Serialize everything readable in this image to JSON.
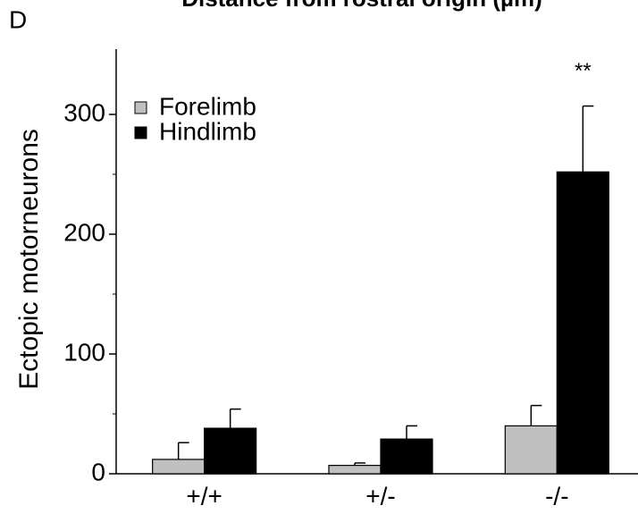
{
  "panel_label": "D",
  "cropped_heading": "Distance from rostral origin (µm)",
  "chart_data": {
    "type": "bar",
    "ylabel": "Ectopic motorneurons",
    "categories": [
      "+/+",
      "+/-",
      "-/-"
    ],
    "series": [
      {
        "name": "Forelimb",
        "color": "#c0c0c0",
        "values": [
          12,
          7,
          40
        ],
        "errors": [
          14,
          2,
          17
        ]
      },
      {
        "name": "Hindlimb",
        "color": "#000000",
        "values": [
          38,
          29,
          252
        ],
        "errors": [
          16,
          11,
          55
        ]
      }
    ],
    "ylim": [
      0,
      350
    ],
    "yticks": [
      0,
      100,
      200,
      300
    ],
    "yminor_ticks": [
      50,
      150,
      250
    ],
    "legend": "upper left",
    "annotations": [
      {
        "text": "**",
        "category": 2,
        "series": 1
      }
    ]
  }
}
